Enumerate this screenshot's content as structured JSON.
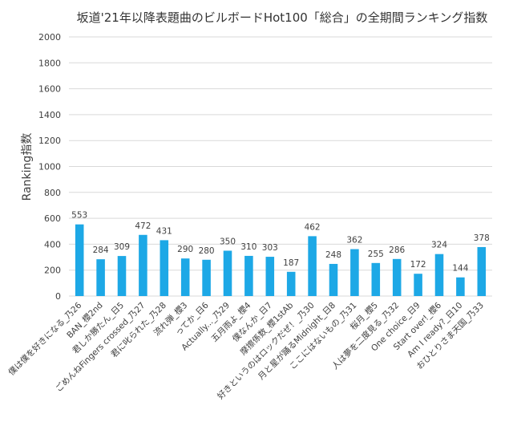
{
  "colors": {
    "bar": "#1DA8E6",
    "grid": "#D9D9D9",
    "text": "#404040"
  },
  "chart_data": {
    "type": "bar",
    "title": "坂道'21年以降表題曲のビルボードHot100「総合」の全期間ランキング指数",
    "xlabel": "",
    "ylabel": "Ranking指数",
    "ylim": [
      0,
      2000
    ],
    "yticks": [
      0,
      200,
      400,
      600,
      800,
      1000,
      1200,
      1400,
      1600,
      1800,
      2000
    ],
    "grid": true,
    "legend": "none",
    "categories": [
      "僕は僕を好きになる_乃26",
      "BAN_櫻2nd",
      "君しか勝たん_日5",
      "ごめんねFingers crossed_乃27",
      "君に叱られた_乃28",
      "流れ弾_櫻3",
      "ってか_日6",
      "Actually..._乃29",
      "五月雨よ_櫻4",
      "僕なんか_日7",
      "摩擦係数_櫻1stAb",
      "好きというのはロックだぜ！_乃30",
      "月と星が踊るMidnight_日8",
      "ここにはないもの_乃31",
      "桜月_櫻5",
      "人は夢を二度見る_乃32",
      "One choice_日9",
      "Start over!_櫻6",
      "Am I ready?_日10",
      "おひとりさま天国_乃33"
    ],
    "values": [
      553,
      284,
      309,
      472,
      431,
      290,
      280,
      350,
      310,
      303,
      187,
      462,
      248,
      362,
      255,
      286,
      172,
      324,
      144,
      378
    ]
  }
}
